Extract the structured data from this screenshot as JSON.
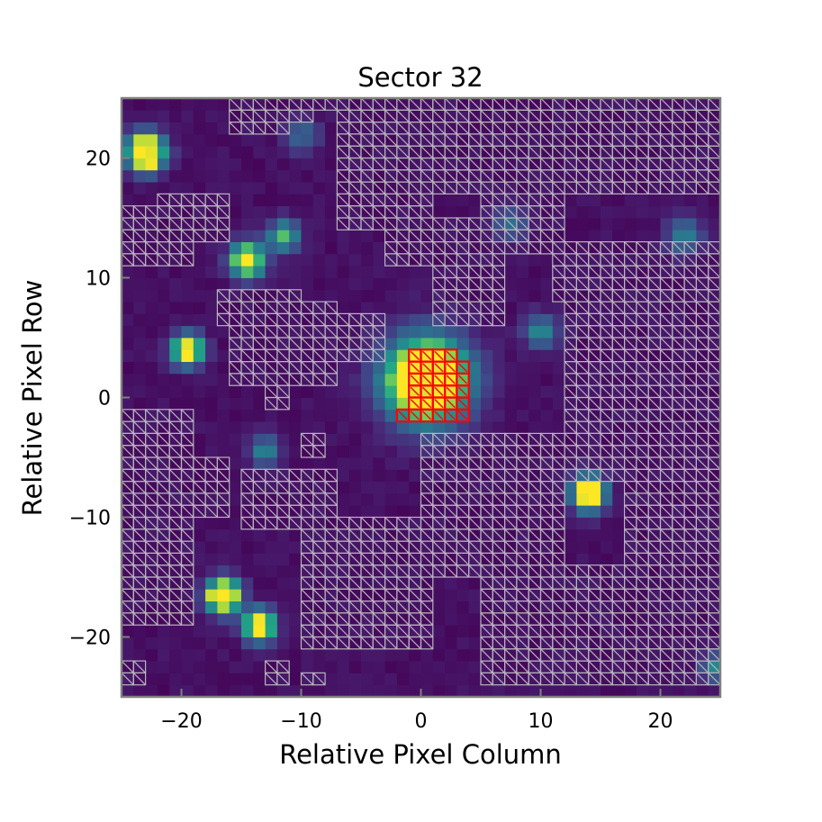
{
  "chart_data": {
    "type": "heatmap",
    "title": "Sector 32",
    "xlabel": "Relative Pixel Column",
    "ylabel": "Relative Pixel Row",
    "xlim": [
      -25,
      25
    ],
    "ylim": [
      -25,
      25
    ],
    "xticks": [
      -20,
      -10,
      0,
      10,
      20
    ],
    "yticks": [
      -20,
      -10,
      0,
      10,
      20
    ],
    "grid": false,
    "colormap": "viridis",
    "colors": {
      "background": "#440154",
      "hatch": "#b8b4bc",
      "aperture": "#ff0000",
      "frame": "#808080"
    },
    "sources": [
      {
        "x": 0.5,
        "y": 1.5,
        "amp": 1.8,
        "sigma": 2.4
      },
      {
        "x": -23,
        "y": 20.5,
        "amp": 1.6,
        "sigma": 1.1
      },
      {
        "x": -14.5,
        "y": 11.5,
        "amp": 1.3,
        "sigma": 1.0
      },
      {
        "x": -11.5,
        "y": 13.5,
        "amp": 0.8,
        "sigma": 0.9
      },
      {
        "x": -19.5,
        "y": 4,
        "amp": 1.4,
        "sigma": 0.9
      },
      {
        "x": 14,
        "y": -8,
        "amp": 1.4,
        "sigma": 1.0
      },
      {
        "x": -16.5,
        "y": -16.5,
        "amp": 1.5,
        "sigma": 1.0
      },
      {
        "x": -13.5,
        "y": -19,
        "amp": 1.5,
        "sigma": 0.9
      },
      {
        "x": 10,
        "y": 5.5,
        "amp": 0.55,
        "sigma": 1.0
      },
      {
        "x": -13,
        "y": -4.5,
        "amp": 0.55,
        "sigma": 0.9
      },
      {
        "x": 7.5,
        "y": 14.5,
        "amp": 0.45,
        "sigma": 1.0
      },
      {
        "x": 22,
        "y": 13.5,
        "amp": 0.5,
        "sigma": 1.1
      },
      {
        "x": -10,
        "y": 22,
        "amp": 0.4,
        "sigma": 1.0
      },
      {
        "x": 24.5,
        "y": -22.5,
        "amp": 0.55,
        "sigma": 0.8
      }
    ],
    "aperture_rows": [
      {
        "row": 3,
        "col_start": -1,
        "col_end": 2
      },
      {
        "row": 2,
        "col_start": -1,
        "col_end": 3
      },
      {
        "row": 1,
        "col_start": -1,
        "col_end": 3
      },
      {
        "row": 0,
        "col_start": -1,
        "col_end": 3
      },
      {
        "row": -1,
        "col_start": -1,
        "col_end": 3
      },
      {
        "row": -2,
        "col_start": -2,
        "col_end": 3
      }
    ],
    "hatched_regions": [
      {
        "x0": -25,
        "x1": -20,
        "y0": 11,
        "y1": 15
      },
      {
        "x0": -22,
        "x1": -17,
        "y0": 13,
        "y1": 16
      },
      {
        "x0": -16,
        "x1": -12,
        "y0": 22,
        "y1": 24
      },
      {
        "x0": -14,
        "x1": -10,
        "y0": 23,
        "y1": 24
      },
      {
        "x0": -17,
        "x1": -11,
        "y0": 6,
        "y1": 8
      },
      {
        "x0": -16,
        "x1": -8,
        "y0": 1,
        "y1": 7
      },
      {
        "x0": -13,
        "x1": -12,
        "y0": -1,
        "y1": 1
      },
      {
        "x0": -12,
        "x1": -4,
        "y0": 3,
        "y1": 6
      },
      {
        "x0": -14,
        "x1": -5,
        "y0": 24,
        "y1": 24
      },
      {
        "x0": -7,
        "x1": 24,
        "y0": 17,
        "y1": 24
      },
      {
        "x0": -7,
        "x1": 0,
        "y0": 14,
        "y1": 17
      },
      {
        "x0": -3,
        "x1": 4,
        "y0": 11,
        "y1": 14
      },
      {
        "x0": 1,
        "x1": 6,
        "y0": 6,
        "y1": 11
      },
      {
        "x0": 5,
        "x1": 11,
        "y0": 12,
        "y1": 17
      },
      {
        "x0": 11,
        "x1": 24,
        "y0": 8,
        "y1": 12
      },
      {
        "x0": 12,
        "x1": 24,
        "y0": -7,
        "y1": 7
      },
      {
        "x0": 17,
        "x1": 24,
        "y0": -24,
        "y1": -7
      },
      {
        "x0": 0,
        "x1": 11,
        "y0": -15,
        "y1": -4
      },
      {
        "x0": 5,
        "x1": 19,
        "y0": -24,
        "y1": -15
      },
      {
        "x0": -10,
        "x1": 0,
        "y0": -21,
        "y1": -11
      },
      {
        "x0": -15,
        "x1": -8,
        "y0": -11,
        "y1": -7
      },
      {
        "x0": -25,
        "x1": -20,
        "y0": -19,
        "y1": -2
      },
      {
        "x0": -20,
        "x1": -17,
        "y0": -10,
        "y1": -6
      },
      {
        "x0": -23,
        "x1": -20,
        "y0": -14,
        "y1": -11
      },
      {
        "x0": -25,
        "x1": -24,
        "y0": -24,
        "y1": -23
      },
      {
        "x0": -13,
        "x1": -12,
        "y0": -24,
        "y1": -23
      },
      {
        "x0": -10,
        "x1": -9,
        "y0": -24,
        "y1": -24
      },
      {
        "x0": -10,
        "x1": -9,
        "y0": -5,
        "y1": -4
      }
    ]
  }
}
